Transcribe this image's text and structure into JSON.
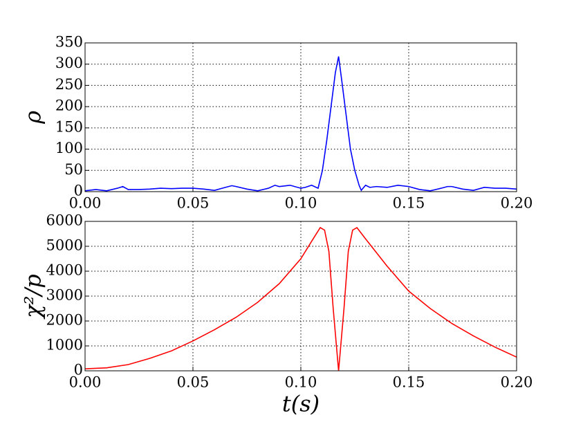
{
  "chart_data": [
    {
      "type": "line",
      "ylabel": "ρ",
      "xlim": [
        0,
        0.2
      ],
      "xticks": [
        {
          "value": 0,
          "label": "0.00"
        },
        {
          "value": 0.05,
          "label": "0.05"
        },
        {
          "value": 0.1,
          "label": "0.10"
        },
        {
          "value": 0.15,
          "label": "0.15"
        },
        {
          "value": 0.2,
          "label": "0.20"
        }
      ],
      "ylim": [
        0,
        350
      ],
      "yticks": [
        0,
        50,
        100,
        150,
        200,
        250,
        300,
        350
      ],
      "grid": true,
      "x": [
        0,
        0.005,
        0.01,
        0.015,
        0.0175,
        0.02,
        0.025,
        0.03,
        0.035,
        0.04,
        0.045,
        0.05,
        0.055,
        0.06,
        0.065,
        0.068,
        0.07,
        0.075,
        0.08,
        0.085,
        0.088,
        0.09,
        0.095,
        0.1,
        0.102,
        0.105,
        0.108,
        0.11,
        0.112,
        0.114,
        0.116,
        0.1175,
        0.119,
        0.121,
        0.123,
        0.125,
        0.127,
        0.128,
        0.13,
        0.132,
        0.135,
        0.14,
        0.145,
        0.15,
        0.155,
        0.16,
        0.165,
        0.168,
        0.17,
        0.175,
        0.18,
        0.185,
        0.19,
        0.195,
        0.2
      ],
      "series": [
        {
          "color": "#0000ff",
          "values": [
            2,
            5,
            2,
            8,
            12,
            5,
            5,
            6,
            8,
            7,
            8,
            8,
            6,
            3,
            10,
            14,
            12,
            6,
            2,
            8,
            15,
            12,
            15,
            8,
            10,
            15,
            8,
            50,
            120,
            200,
            280,
            318,
            260,
            180,
            100,
            50,
            15,
            3,
            15,
            10,
            12,
            10,
            15,
            12,
            5,
            2,
            8,
            12,
            12,
            6,
            3,
            10,
            8,
            8,
            6
          ]
        }
      ]
    },
    {
      "type": "line",
      "ylabel": "χ²/p",
      "xlabel": "t(s)",
      "xlim": [
        0,
        0.2
      ],
      "xticks": [
        {
          "value": 0,
          "label": "0.00"
        },
        {
          "value": 0.05,
          "label": "0.05"
        },
        {
          "value": 0.1,
          "label": "0.10"
        },
        {
          "value": 0.15,
          "label": "0.15"
        },
        {
          "value": 0.2,
          "label": "0.20"
        }
      ],
      "ylim": [
        0,
        6000
      ],
      "yticks": [
        0,
        1000,
        2000,
        3000,
        4000,
        5000,
        6000
      ],
      "grid": true,
      "x": [
        0,
        0.01,
        0.02,
        0.03,
        0.04,
        0.05,
        0.06,
        0.07,
        0.08,
        0.09,
        0.1,
        0.105,
        0.109,
        0.111,
        0.113,
        0.115,
        0.1175,
        0.12,
        0.122,
        0.124,
        0.126,
        0.13,
        0.14,
        0.15,
        0.16,
        0.17,
        0.18,
        0.19,
        0.2
      ],
      "series": [
        {
          "color": "#ff0000",
          "values": [
            80,
            120,
            250,
            500,
            800,
            1200,
            1650,
            2150,
            2750,
            3500,
            4500,
            5200,
            5750,
            5650,
            4800,
            2500,
            0,
            2500,
            4800,
            5650,
            5750,
            5300,
            4200,
            3200,
            2500,
            1900,
            1400,
            950,
            550
          ]
        }
      ]
    }
  ]
}
